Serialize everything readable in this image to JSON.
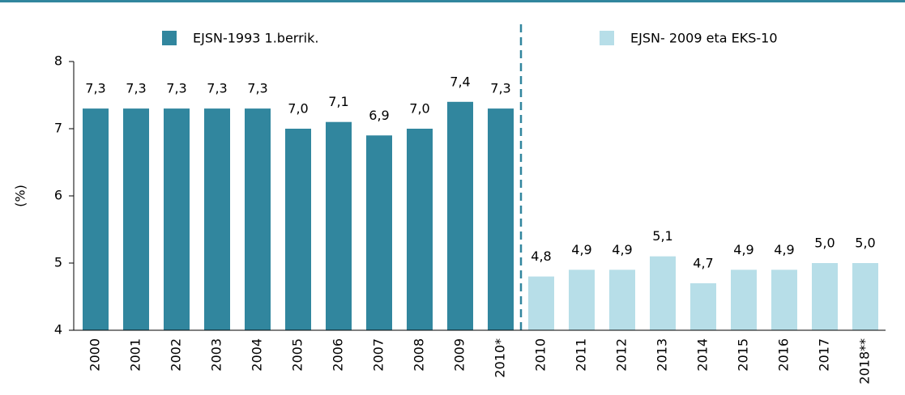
{
  "chart_data": {
    "type": "bar",
    "ylabel": "(%)",
    "categories": [
      "2000",
      "2001",
      "2002",
      "2003",
      "2004",
      "2005",
      "2006",
      "2007",
      "2008",
      "2009",
      "2010*",
      "2010",
      "2011",
      "2012",
      "2013",
      "2014",
      "2015",
      "2016",
      "2017",
      "2018**"
    ],
    "series": [
      {
        "name": "EJSN-1993 1.berrik.",
        "color": "#31869e",
        "values": [
          7.3,
          7.3,
          7.3,
          7.3,
          7.3,
          7.0,
          7.1,
          6.9,
          7.0,
          7.4,
          7.3,
          null,
          null,
          null,
          null,
          null,
          null,
          null,
          null,
          null
        ],
        "value_labels": [
          "7,3",
          "7,3",
          "7,3",
          "7,3",
          "7,3",
          "7,0",
          "7,1",
          "6,9",
          "7,0",
          "7,4",
          "7,3",
          null,
          null,
          null,
          null,
          null,
          null,
          null,
          null,
          null
        ]
      },
      {
        "name": "EJSN- 2009 eta EKS-10",
        "color": "#b7dee8",
        "values": [
          null,
          null,
          null,
          null,
          null,
          null,
          null,
          null,
          null,
          null,
          null,
          4.8,
          4.9,
          4.9,
          5.1,
          4.7,
          4.9,
          4.9,
          5.0,
          5.0
        ],
        "value_labels": [
          null,
          null,
          null,
          null,
          null,
          null,
          null,
          null,
          null,
          null,
          null,
          "4,8",
          "4,9",
          "4,9",
          "5,1",
          "4,7",
          "4,9",
          "4,9",
          "5,0",
          "5,0"
        ]
      }
    ],
    "ylim": [
      4,
      8
    ],
    "yticks": [
      4,
      5,
      6,
      7,
      8
    ]
  }
}
